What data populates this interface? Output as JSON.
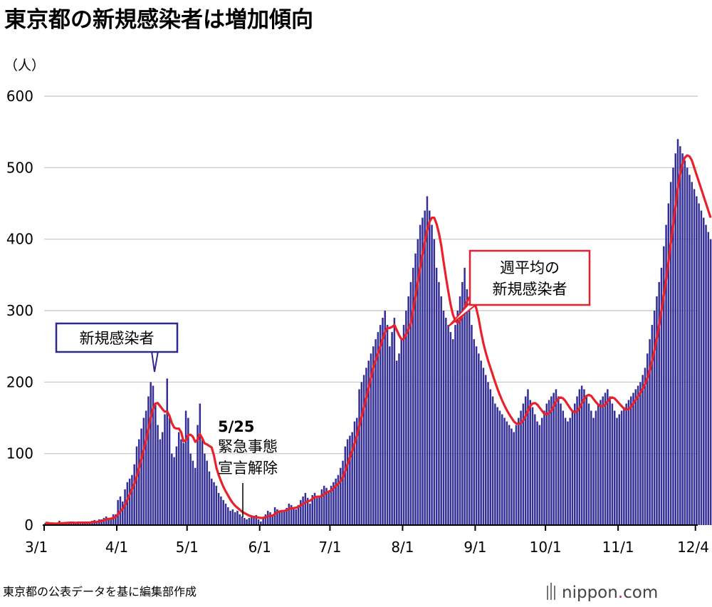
{
  "title": "東京都の新規感染者は増加傾向",
  "source_note": "東京都の公表データを基に編集部作成",
  "brand": {
    "name": "nippon",
    "dot": ".",
    "tld": "com"
  },
  "colors": {
    "bars": "#332f96",
    "line": "#e8212a",
    "grid": "#c4c4c4",
    "axis": "#000000"
  },
  "chart_data": {
    "type": "bar",
    "ylabel": "（人）",
    "ylim": [
      0,
      600
    ],
    "yticks": [
      0,
      100,
      200,
      300,
      400,
      500,
      600
    ],
    "x_labels": [
      "3/1",
      "4/1",
      "5/1",
      "6/1",
      "7/1",
      "8/1",
      "9/1",
      "10/1",
      "11/1",
      "12/4"
    ],
    "x_label_dates": [
      "2020-03-01",
      "2020-04-01",
      "2020-05-01",
      "2020-06-01",
      "2020-07-01",
      "2020-08-01",
      "2020-09-01",
      "2020-10-01",
      "2020-11-01",
      "2020-12-04"
    ],
    "x_start": "2020-03-01",
    "x_end": "2020-12-04",
    "series": [
      {
        "name": "新規感染者",
        "kind": "bar",
        "values": [
          3,
          3,
          1,
          2,
          1,
          3,
          6,
          2,
          4,
          3,
          4,
          2,
          3,
          3,
          5,
          4,
          3,
          4,
          2,
          4,
          6,
          7,
          5,
          8,
          8,
          10,
          12,
          10,
          9,
          15,
          15,
          35,
          40,
          33,
          50,
          60,
          65,
          70,
          85,
          110,
          120,
          135,
          150,
          160,
          180,
          200,
          195,
          170,
          140,
          120,
          130,
          155,
          205,
          150,
          100,
          95,
          110,
          130,
          120,
          115,
          160,
          150,
          100,
          90,
          80,
          140,
          170,
          120,
          100,
          90,
          75,
          65,
          60,
          55,
          45,
          40,
          35,
          30,
          25,
          20,
          22,
          18,
          20,
          15,
          12,
          10,
          8,
          10,
          11,
          13,
          14,
          8,
          5,
          10,
          15,
          20,
          18,
          15,
          25,
          22,
          18,
          20,
          21,
          24,
          30,
          28,
          25,
          22,
          28,
          35,
          40,
          45,
          38,
          30,
          42,
          45,
          38,
          40,
          50,
          55,
          52,
          48,
          55,
          60,
          65,
          70,
          80,
          90,
          110,
          120,
          125,
          130,
          145,
          150,
          190,
          200,
          210,
          220,
          230,
          240,
          250,
          260,
          270,
          280,
          290,
          300,
          280,
          250,
          270,
          290,
          230,
          240,
          260,
          280,
          300,
          320,
          340,
          360,
          380,
          400,
          420,
          430,
          440,
          460,
          440,
          420,
          400,
          360,
          340,
          320,
          300,
          290,
          280,
          270,
          260,
          280,
          300,
          320,
          340,
          360,
          330,
          300,
          280,
          260,
          250,
          240,
          230,
          220,
          210,
          200,
          190,
          180,
          170,
          165,
          160,
          155,
          150,
          145,
          140,
          135,
          130,
          140,
          150,
          160,
          170,
          180,
          190,
          175,
          165,
          155,
          145,
          140,
          150,
          160,
          170,
          175,
          180,
          185,
          190,
          180,
          170,
          160,
          150,
          145,
          150,
          160,
          170,
          180,
          190,
          195,
          190,
          180,
          170,
          160,
          150,
          160,
          170,
          175,
          180,
          185,
          190,
          180,
          170,
          160,
          150,
          155,
          160,
          165,
          170,
          175,
          180,
          185,
          190,
          195,
          200,
          210,
          220,
          240,
          260,
          280,
          300,
          320,
          340,
          360,
          390,
          420,
          450,
          480,
          500,
          520,
          540,
          530,
          520,
          510,
          500,
          490,
          480,
          470,
          460,
          450,
          440,
          430,
          420,
          410,
          400
        ]
      },
      {
        "name": "週平均の\n新規感染者",
        "kind": "line"
      }
    ],
    "annotations": [
      {
        "lines": [
          "新規感染者"
        ],
        "boxed": true
      },
      {
        "lines": [
          "5/25",
          "緊急事態",
          "宣言解除"
        ],
        "boxed": false
      },
      {
        "lines": [
          "週平均の",
          "新規感染者"
        ],
        "boxed": true
      }
    ],
    "grid": true
  }
}
